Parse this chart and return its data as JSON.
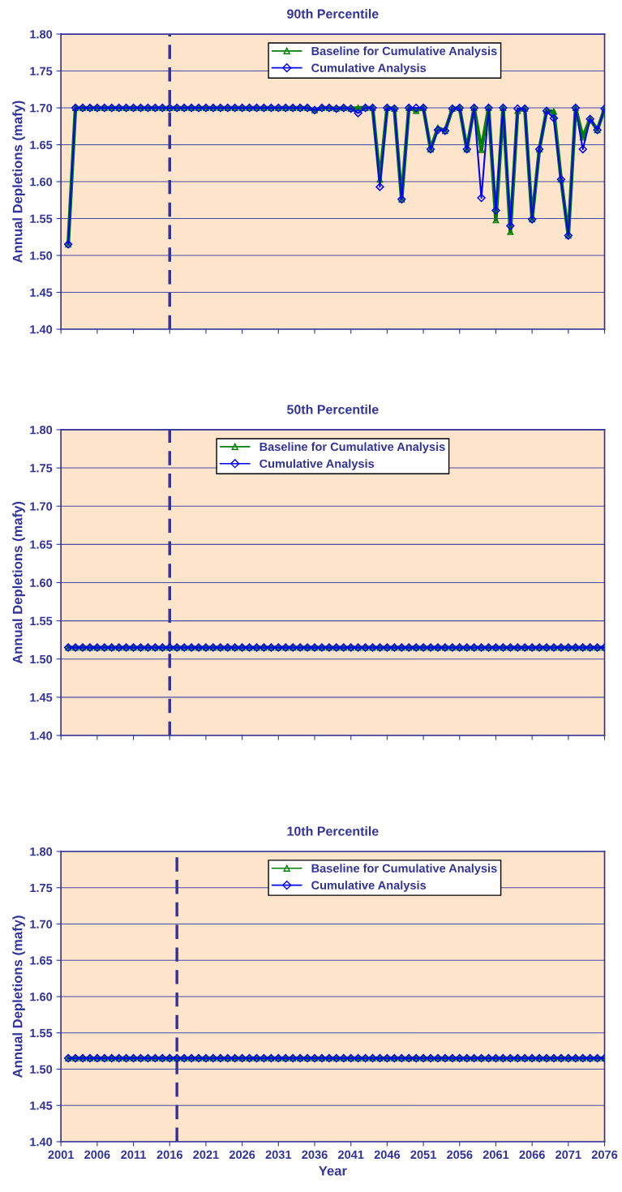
{
  "chart_data": [
    {
      "type": "line",
      "title": "90th Percentile",
      "ylabel": "Annual Depletions (mafy)",
      "xlim": [
        2001,
        2076
      ],
      "xticks": [
        2001,
        2006,
        2011,
        2016,
        2021,
        2026,
        2031,
        2036,
        2041,
        2046,
        2051,
        2056,
        2061,
        2066,
        2071,
        2076
      ],
      "ylim": [
        1.4,
        1.8
      ],
      "yticks": [
        {
          "value": 1.4,
          "label": "1.40"
        },
        {
          "value": 1.45,
          "label": "1.45"
        },
        {
          "value": 1.5,
          "label": "1.50"
        },
        {
          "value": 1.55,
          "label": "1.55"
        },
        {
          "value": 1.6,
          "label": "1.60"
        },
        {
          "value": 1.65,
          "label": "1.65"
        },
        {
          "value": 1.7,
          "label": "1.70"
        },
        {
          "value": 1.75,
          "label": "1.75"
        },
        {
          "value": 1.8,
          "label": "1.80"
        }
      ],
      "tick_labels": "y",
      "grid": "y",
      "legend": "top right",
      "x": [
        2002,
        2003,
        2004,
        2005,
        2006,
        2007,
        2008,
        2009,
        2010,
        2011,
        2012,
        2013,
        2014,
        2015,
        2016,
        2017,
        2018,
        2019,
        2020,
        2021,
        2022,
        2023,
        2024,
        2025,
        2026,
        2027,
        2028,
        2029,
        2030,
        2031,
        2032,
        2033,
        2034,
        2035,
        2036,
        2037,
        2038,
        2039,
        2040,
        2041,
        2042,
        2043,
        2044,
        2045,
        2046,
        2047,
        2048,
        2049,
        2050,
        2051,
        2052,
        2053,
        2054,
        2055,
        2056,
        2057,
        2058,
        2059,
        2060,
        2061,
        2062,
        2063,
        2064,
        2065,
        2066,
        2067,
        2068,
        2069,
        2070,
        2071,
        2072,
        2073,
        2074,
        2075,
        2076
      ],
      "series": [
        {
          "name": "Baseline for Cumulative Analysis",
          "color": "#008000",
          "marker": "triangle",
          "values": [
            1.515,
            1.7,
            1.7,
            1.7,
            1.7,
            1.7,
            1.7,
            1.7,
            1.7,
            1.7,
            1.7,
            1.7,
            1.7,
            1.7,
            1.7,
            1.7,
            1.7,
            1.7,
            1.7,
            1.7,
            1.7,
            1.7,
            1.7,
            1.7,
            1.7,
            1.7,
            1.7,
            1.7,
            1.7,
            1.7,
            1.7,
            1.7,
            1.7,
            1.7,
            1.697,
            1.7,
            1.7,
            1.699,
            1.7,
            1.699,
            1.7,
            1.7,
            1.7,
            1.603,
            1.7,
            1.699,
            1.576,
            1.7,
            1.696,
            1.7,
            1.644,
            1.673,
            1.669,
            1.699,
            1.7,
            1.644,
            1.7,
            1.643,
            1.7,
            1.548,
            1.7,
            1.532,
            1.696,
            1.699,
            1.549,
            1.644,
            1.696,
            1.695,
            1.603,
            1.527,
            1.7,
            1.66,
            1.685,
            1.67,
            1.699
          ]
        },
        {
          "name": "Cumulative Analysis",
          "color": "#0000ff",
          "marker": "diamond",
          "values": [
            1.515,
            1.7,
            1.7,
            1.7,
            1.7,
            1.7,
            1.7,
            1.7,
            1.7,
            1.7,
            1.7,
            1.7,
            1.7,
            1.7,
            1.7,
            1.7,
            1.7,
            1.7,
            1.7,
            1.7,
            1.7,
            1.7,
            1.7,
            1.7,
            1.7,
            1.7,
            1.7,
            1.7,
            1.7,
            1.7,
            1.7,
            1.7,
            1.7,
            1.7,
            1.697,
            1.7,
            1.7,
            1.699,
            1.7,
            1.699,
            1.693,
            1.7,
            1.7,
            1.593,
            1.7,
            1.699,
            1.576,
            1.7,
            1.7,
            1.7,
            1.644,
            1.67,
            1.669,
            1.699,
            1.7,
            1.644,
            1.7,
            1.578,
            1.7,
            1.561,
            1.7,
            1.54,
            1.699,
            1.699,
            1.549,
            1.644,
            1.696,
            1.686,
            1.603,
            1.527,
            1.7,
            1.644,
            1.685,
            1.67,
            1.699
          ]
        }
      ],
      "ref_lines": [
        {
          "axis": "x",
          "value": 2016,
          "color": "#333399",
          "line_style": "dashed"
        }
      ]
    },
    {
      "type": "line",
      "title": "50th Percentile",
      "ylabel": "Annual Depletions (mafy)",
      "xlim": [
        2001,
        2076
      ],
      "xticks": [
        2001,
        2006,
        2011,
        2016,
        2021,
        2026,
        2031,
        2036,
        2041,
        2046,
        2051,
        2056,
        2061,
        2066,
        2071,
        2076
      ],
      "ylim": [
        1.4,
        1.8
      ],
      "yticks": [
        {
          "value": 1.4,
          "label": "1.40"
        },
        {
          "value": 1.45,
          "label": "1.45"
        },
        {
          "value": 1.5,
          "label": "1.50"
        },
        {
          "value": 1.55,
          "label": "1.55"
        },
        {
          "value": 1.6,
          "label": "1.60"
        },
        {
          "value": 1.65,
          "label": "1.65"
        },
        {
          "value": 1.7,
          "label": "1.70"
        },
        {
          "value": 1.75,
          "label": "1.75"
        },
        {
          "value": 1.8,
          "label": "1.80"
        }
      ],
      "tick_labels": "y",
      "grid": "y",
      "legend": "top",
      "x": [
        2002,
        2003,
        2004,
        2005,
        2006,
        2007,
        2008,
        2009,
        2010,
        2011,
        2012,
        2013,
        2014,
        2015,
        2016,
        2017,
        2018,
        2019,
        2020,
        2021,
        2022,
        2023,
        2024,
        2025,
        2026,
        2027,
        2028,
        2029,
        2030,
        2031,
        2032,
        2033,
        2034,
        2035,
        2036,
        2037,
        2038,
        2039,
        2040,
        2041,
        2042,
        2043,
        2044,
        2045,
        2046,
        2047,
        2048,
        2049,
        2050,
        2051,
        2052,
        2053,
        2054,
        2055,
        2056,
        2057,
        2058,
        2059,
        2060,
        2061,
        2062,
        2063,
        2064,
        2065,
        2066,
        2067,
        2068,
        2069,
        2070,
        2071,
        2072,
        2073,
        2074,
        2075,
        2076
      ],
      "series": [
        {
          "name": "Baseline for Cumulative Analysis",
          "color": "#008000",
          "marker": "triangle",
          "values": [
            1.515,
            1.515,
            1.515,
            1.515,
            1.515,
            1.515,
            1.515,
            1.515,
            1.515,
            1.515,
            1.515,
            1.515,
            1.515,
            1.515,
            1.515,
            1.515,
            1.515,
            1.515,
            1.515,
            1.515,
            1.515,
            1.515,
            1.515,
            1.515,
            1.515,
            1.515,
            1.515,
            1.515,
            1.515,
            1.515,
            1.515,
            1.515,
            1.515,
            1.515,
            1.515,
            1.515,
            1.515,
            1.515,
            1.515,
            1.515,
            1.515,
            1.515,
            1.515,
            1.515,
            1.515,
            1.515,
            1.515,
            1.515,
            1.515,
            1.515,
            1.515,
            1.515,
            1.515,
            1.515,
            1.515,
            1.515,
            1.515,
            1.515,
            1.515,
            1.515,
            1.515,
            1.515,
            1.515,
            1.515,
            1.515,
            1.515,
            1.515,
            1.515,
            1.515,
            1.515,
            1.515,
            1.515,
            1.515,
            1.515,
            1.515
          ]
        },
        {
          "name": "Cumulative Analysis",
          "color": "#0000ff",
          "marker": "diamond",
          "values": [
            1.515,
            1.515,
            1.515,
            1.515,
            1.515,
            1.515,
            1.515,
            1.515,
            1.515,
            1.515,
            1.515,
            1.515,
            1.515,
            1.515,
            1.515,
            1.515,
            1.515,
            1.515,
            1.515,
            1.515,
            1.515,
            1.515,
            1.515,
            1.515,
            1.515,
            1.515,
            1.515,
            1.515,
            1.515,
            1.515,
            1.515,
            1.515,
            1.515,
            1.515,
            1.515,
            1.515,
            1.515,
            1.515,
            1.515,
            1.515,
            1.515,
            1.515,
            1.515,
            1.515,
            1.515,
            1.515,
            1.515,
            1.515,
            1.515,
            1.515,
            1.515,
            1.515,
            1.515,
            1.515,
            1.515,
            1.515,
            1.515,
            1.515,
            1.515,
            1.515,
            1.515,
            1.515,
            1.515,
            1.515,
            1.515,
            1.515,
            1.515,
            1.515,
            1.515,
            1.515,
            1.515,
            1.515,
            1.515,
            1.515,
            1.515
          ]
        }
      ],
      "ref_lines": [
        {
          "axis": "x",
          "value": 2016,
          "color": "#333399",
          "line_style": "dashed"
        }
      ]
    },
    {
      "type": "line",
      "title": "10th Percentile",
      "xlabel": "Year",
      "ylabel": "Annual Depletions (mafy)",
      "xlim": [
        2001,
        2076
      ],
      "xticks": [
        2001,
        2006,
        2011,
        2016,
        2021,
        2026,
        2031,
        2036,
        2041,
        2046,
        2051,
        2056,
        2061,
        2066,
        2071,
        2076
      ],
      "ylim": [
        1.4,
        1.8
      ],
      "yticks": [
        {
          "value": 1.4,
          "label": "1.40"
        },
        {
          "value": 1.45,
          "label": "1.45"
        },
        {
          "value": 1.5,
          "label": "1.50"
        },
        {
          "value": 1.55,
          "label": "1.55"
        },
        {
          "value": 1.6,
          "label": "1.60"
        },
        {
          "value": 1.65,
          "label": "1.65"
        },
        {
          "value": 1.7,
          "label": "1.70"
        },
        {
          "value": 1.75,
          "label": "1.75"
        },
        {
          "value": 1.8,
          "label": "1.80"
        }
      ],
      "grid": "y",
      "legend": "top right",
      "x": [
        2002,
        2003,
        2004,
        2005,
        2006,
        2007,
        2008,
        2009,
        2010,
        2011,
        2012,
        2013,
        2014,
        2015,
        2016,
        2017,
        2018,
        2019,
        2020,
        2021,
        2022,
        2023,
        2024,
        2025,
        2026,
        2027,
        2028,
        2029,
        2030,
        2031,
        2032,
        2033,
        2034,
        2035,
        2036,
        2037,
        2038,
        2039,
        2040,
        2041,
        2042,
        2043,
        2044,
        2045,
        2046,
        2047,
        2048,
        2049,
        2050,
        2051,
        2052,
        2053,
        2054,
        2055,
        2056,
        2057,
        2058,
        2059,
        2060,
        2061,
        2062,
        2063,
        2064,
        2065,
        2066,
        2067,
        2068,
        2069,
        2070,
        2071,
        2072,
        2073,
        2074,
        2075,
        2076
      ],
      "series": [
        {
          "name": "Baseline for Cumulative Analysis",
          "color": "#008000",
          "marker": "triangle",
          "values": [
            1.515,
            1.515,
            1.515,
            1.515,
            1.515,
            1.515,
            1.515,
            1.515,
            1.515,
            1.515,
            1.515,
            1.515,
            1.515,
            1.515,
            1.515,
            1.515,
            1.515,
            1.515,
            1.515,
            1.515,
            1.515,
            1.515,
            1.515,
            1.515,
            1.515,
            1.515,
            1.515,
            1.515,
            1.515,
            1.515,
            1.515,
            1.515,
            1.515,
            1.515,
            1.515,
            1.515,
            1.515,
            1.515,
            1.515,
            1.515,
            1.515,
            1.515,
            1.515,
            1.515,
            1.515,
            1.515,
            1.515,
            1.515,
            1.515,
            1.515,
            1.515,
            1.515,
            1.515,
            1.515,
            1.515,
            1.515,
            1.515,
            1.515,
            1.515,
            1.515,
            1.515,
            1.515,
            1.515,
            1.515,
            1.515,
            1.515,
            1.515,
            1.515,
            1.515,
            1.515,
            1.515,
            1.515,
            1.515,
            1.515,
            1.515
          ]
        },
        {
          "name": "Cumulative Analysis",
          "color": "#0000ff",
          "marker": "diamond",
          "values": [
            1.515,
            1.515,
            1.515,
            1.515,
            1.515,
            1.515,
            1.515,
            1.515,
            1.515,
            1.515,
            1.515,
            1.515,
            1.515,
            1.515,
            1.515,
            1.515,
            1.515,
            1.515,
            1.515,
            1.515,
            1.515,
            1.515,
            1.515,
            1.515,
            1.515,
            1.515,
            1.515,
            1.515,
            1.515,
            1.515,
            1.515,
            1.515,
            1.515,
            1.515,
            1.515,
            1.515,
            1.515,
            1.515,
            1.515,
            1.515,
            1.515,
            1.515,
            1.515,
            1.515,
            1.515,
            1.515,
            1.515,
            1.515,
            1.515,
            1.515,
            1.515,
            1.515,
            1.515,
            1.515,
            1.515,
            1.515,
            1.515,
            1.515,
            1.515,
            1.515,
            1.515,
            1.515,
            1.515,
            1.515,
            1.515,
            1.515,
            1.515,
            1.515,
            1.515,
            1.515,
            1.515,
            1.515,
            1.515,
            1.515,
            1.515
          ]
        }
      ],
      "ref_lines": [
        {
          "axis": "x",
          "value": 2017,
          "color": "#333399",
          "line_style": "dashed"
        }
      ]
    }
  ]
}
